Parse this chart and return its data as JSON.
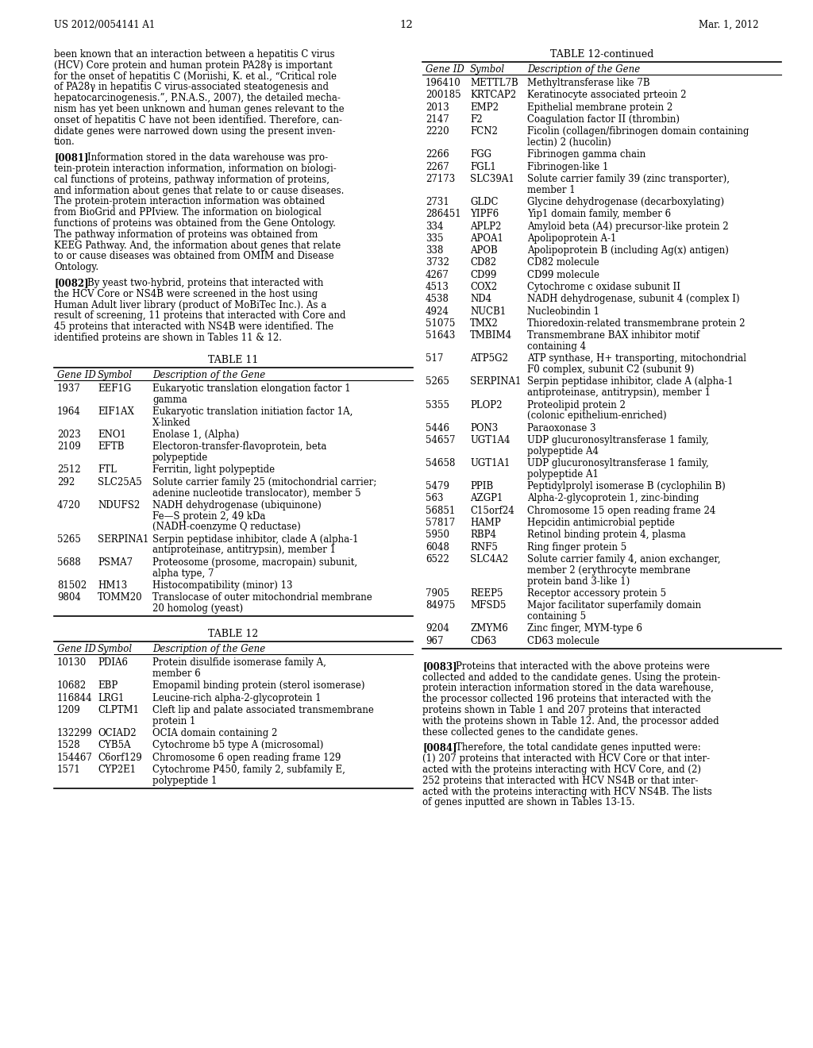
{
  "header_left": "US 2012/0054141 A1",
  "header_right": "Mar. 1, 2012",
  "page_number": "12",
  "bg_color": "#ffffff",
  "text_color": "#000000",
  "left_text_lines": [
    "been known that an interaction between a hepatitis C virus",
    "(HCV) Core protein and human protein PA28γ is important",
    "for the onset of hepatitis C (Moriishi, K. et al., “Critical role",
    "of PA28γ in hepatitis C virus-associated steatogenesis and",
    "hepatocarcinogenesis.”, P.N.A.S., 2007), the detailed mecha-",
    "nism has yet been unknown and human genes relevant to the",
    "onset of hepatitis C have not been identified. Therefore, can-",
    "didate genes were narrowed down using the present inven-",
    "tion."
  ],
  "para_0081_label": "[0081]",
  "para_0081_lines": [
    "Information stored in the data warehouse was pro-",
    "tein-protein interaction information, information on biologi-",
    "cal functions of proteins, pathway information of proteins,",
    "and information about genes that relate to or cause diseases.",
    "The protein-protein interaction information was obtained",
    "from BioGrid and PPIview. The information on biological",
    "functions of proteins was obtained from the Gene Ontology.",
    "The pathway information of proteins was obtained from",
    "KEEG Pathway. And, the information about genes that relate",
    "to or cause diseases was obtained from OMIM and Disease",
    "Ontology."
  ],
  "para_0082_label": "[0082]",
  "para_0082_lines": [
    "By yeast two-hybrid, proteins that interacted with",
    "the HCV Core or NS4B were screened in the host using",
    "Human Adult liver library (product of MoBiTec Inc.). As a",
    "result of screening, 11 proteins that interacted with Core and",
    "45 proteins that interacted with NS4B were identified. The",
    "identified proteins are shown in Tables 11 & 12."
  ],
  "table11_title": "TABLE 11",
  "table11_headers": [
    "Gene ID",
    "Symbol",
    "Description of the Gene"
  ],
  "table11_rows": [
    [
      "1937",
      "EEF1G",
      "Eukaryotic translation elongation factor 1\ngamma"
    ],
    [
      "1964",
      "EIF1AX",
      "Eukaryotic translation initiation factor 1A,\nX-linked"
    ],
    [
      "2023",
      "ENO1",
      "Enolase 1, (Alpha)"
    ],
    [
      "2109",
      "EFTB",
      "Electoron-transfer-flavoprotein, beta\npolypeptide"
    ],
    [
      "2512",
      "FTL",
      "Ferritin, light polypeptide"
    ],
    [
      "292",
      "SLC25A5",
      "Solute carrier family 25 (mitochondrial carrier;\nadenine nucleotide translocator), member 5"
    ],
    [
      "4720",
      "NDUFS2",
      "NADH dehydrogenase (ubiquinone)\nFe—S protein 2, 49 kDa\n(NADH-coenzyme Q reductase)"
    ],
    [
      "5265",
      "SERPINA1",
      "Serpin peptidase inhibitor, clade A (alpha-1\nantiproteinase, antitrypsin), member 1"
    ],
    [
      "5688",
      "PSMA7",
      "Proteosome (prosome, macropain) subunit,\nalpha type, 7"
    ],
    [
      "81502",
      "HM13",
      "Histocompatibility (minor) 13"
    ],
    [
      "9804",
      "TOMM20",
      "Translocase of outer mitochondrial membrane\n20 homolog (yeast)"
    ]
  ],
  "table12_title": "TABLE 12",
  "table12_headers": [
    "Gene ID",
    "Symbol",
    "Description of the Gene"
  ],
  "table12_rows": [
    [
      "10130",
      "PDIA6",
      "Protein disulfide isomerase family A,\nmember 6"
    ],
    [
      "10682",
      "EBP",
      "Emopamil binding protein (sterol isomerase)"
    ],
    [
      "116844",
      "LRG1",
      "Leucine-rich alpha-2-glycoprotein 1"
    ],
    [
      "1209",
      "CLPTM1",
      "Cleft lip and palate associated transmembrane\nprotein 1"
    ],
    [
      "132299",
      "OCIAD2",
      "OCIA domain containing 2"
    ],
    [
      "1528",
      "CYB5A",
      "Cytochrome b5 type A (microsomal)"
    ],
    [
      "154467",
      "C6orf129",
      "Chromosome 6 open reading frame 129"
    ],
    [
      "1571",
      "CYP2E1",
      "Cytochrome P450, family 2, subfamily E,\npolypeptide 1"
    ]
  ],
  "table12cont_title": "TABLE 12-continued",
  "table12cont_headers": [
    "Gene ID",
    "Symbol",
    "Description of the Gene"
  ],
  "table12cont_rows": [
    [
      "196410",
      "METTL7B",
      "Methyltransferase like 7B"
    ],
    [
      "200185",
      "KRTCAP2",
      "Keratinocyte associated prteoin 2"
    ],
    [
      "2013",
      "EMP2",
      "Epithelial membrane protein 2"
    ],
    [
      "2147",
      "F2",
      "Coagulation factor II (thrombin)"
    ],
    [
      "2220",
      "FCN2",
      "Ficolin (collagen/fibrinogen domain containing\nlectin) 2 (hucolin)"
    ],
    [
      "2266",
      "FGG",
      "Fibrinogen gamma chain"
    ],
    [
      "2267",
      "FGL1",
      "Fibrinogen-like 1"
    ],
    [
      "27173",
      "SLC39A1",
      "Solute carrier family 39 (zinc transporter),\nmember 1"
    ],
    [
      "2731",
      "GLDC",
      "Glycine dehydrogenase (decarboxylating)"
    ],
    [
      "286451",
      "YIPF6",
      "Yip1 domain family, member 6"
    ],
    [
      "334",
      "APLP2",
      "Amyloid beta (A4) precursor-like protein 2"
    ],
    [
      "335",
      "APOA1",
      "Apolipoprotein A-1"
    ],
    [
      "338",
      "APOB",
      "Apolipoprotein B (including Ag(x) antigen)"
    ],
    [
      "3732",
      "CD82",
      "CD82 molecule"
    ],
    [
      "4267",
      "CD99",
      "CD99 molecule"
    ],
    [
      "4513",
      "COX2",
      "Cytochrome c oxidase subunit II"
    ],
    [
      "4538",
      "ND4",
      "NADH dehydrogenase, subunit 4 (complex I)"
    ],
    [
      "4924",
      "NUCB1",
      "Nucleobindin 1"
    ],
    [
      "51075",
      "TMX2",
      "Thioredoxin-related transmembrane protein 2"
    ],
    [
      "51643",
      "TMBIM4",
      "Transmembrane BAX inhibitor motif\ncontaining 4"
    ],
    [
      "517",
      "ATP5G2",
      "ATP synthase, H+ transporting, mitochondrial\nF0 complex, subunit C2 (subunit 9)"
    ],
    [
      "5265",
      "SERPINA1",
      "Serpin peptidase inhibitor, clade A (alpha-1\nantiproteinase, antitrypsin), member 1"
    ],
    [
      "5355",
      "PLOP2",
      "Proteolipid protein 2\n(colonic epithelium-enriched)"
    ],
    [
      "5446",
      "PON3",
      "Paraoxonase 3"
    ],
    [
      "54657",
      "UGT1A4",
      "UDP glucuronosyltransferase 1 family,\npolypeptide A4"
    ],
    [
      "54658",
      "UGT1A1",
      "UDP glucuronosyltransferase 1 family,\npolypeptide A1"
    ],
    [
      "5479",
      "PPIB",
      "Peptidylprolyl isomerase B (cyclophilin B)"
    ],
    [
      "563",
      "AZGP1",
      "Alpha-2-glycoprotein 1, zinc-binding"
    ],
    [
      "56851",
      "C15orf24",
      "Chromosome 15 open reading frame 24"
    ],
    [
      "57817",
      "HAMP",
      "Hepcidin antimicrobial peptide"
    ],
    [
      "5950",
      "RBP4",
      "Retinol binding protein 4, plasma"
    ],
    [
      "6048",
      "RNF5",
      "Ring finger protein 5"
    ],
    [
      "6522",
      "SLC4A2",
      "Solute carrier family 4, anion exchanger,\nmember 2 (erythrocyte membrane\nprotein band 3-like 1)"
    ],
    [
      "7905",
      "REEP5",
      "Receptor accessory protein 5"
    ],
    [
      "84975",
      "MFSD5",
      "Major facilitator superfamily domain\ncontaining 5"
    ],
    [
      "9204",
      "ZMYM6",
      "Zinc finger, MYM-type 6"
    ],
    [
      "967",
      "CD63",
      "CD63 molecule"
    ]
  ],
  "para_0083_label": "[0083]",
  "para_0083_lines": [
    "Proteins that interacted with the above proteins were",
    "collected and added to the candidate genes. Using the protein-",
    "protein interaction information stored in the data warehouse,",
    "the processor collected 196 proteins that interacted with the",
    "proteins shown in Table 1 and 207 proteins that interacted",
    "with the proteins shown in Table 12. And, the processor added",
    "these collected genes to the candidate genes."
  ],
  "para_0084_label": "[0084]",
  "para_0084_lines": [
    "Therefore, the total candidate genes inputted were:",
    "(1) 207 proteins that interacted with HCV Core or that inter-",
    "acted with the proteins interacting with HCV Core, and (2)",
    "252 proteins that interacted with HCV NS4B or that inter-",
    "acted with the proteins interacting with HCV NS4B. The lists",
    "of genes inputted are shown in Tables 13-15."
  ]
}
